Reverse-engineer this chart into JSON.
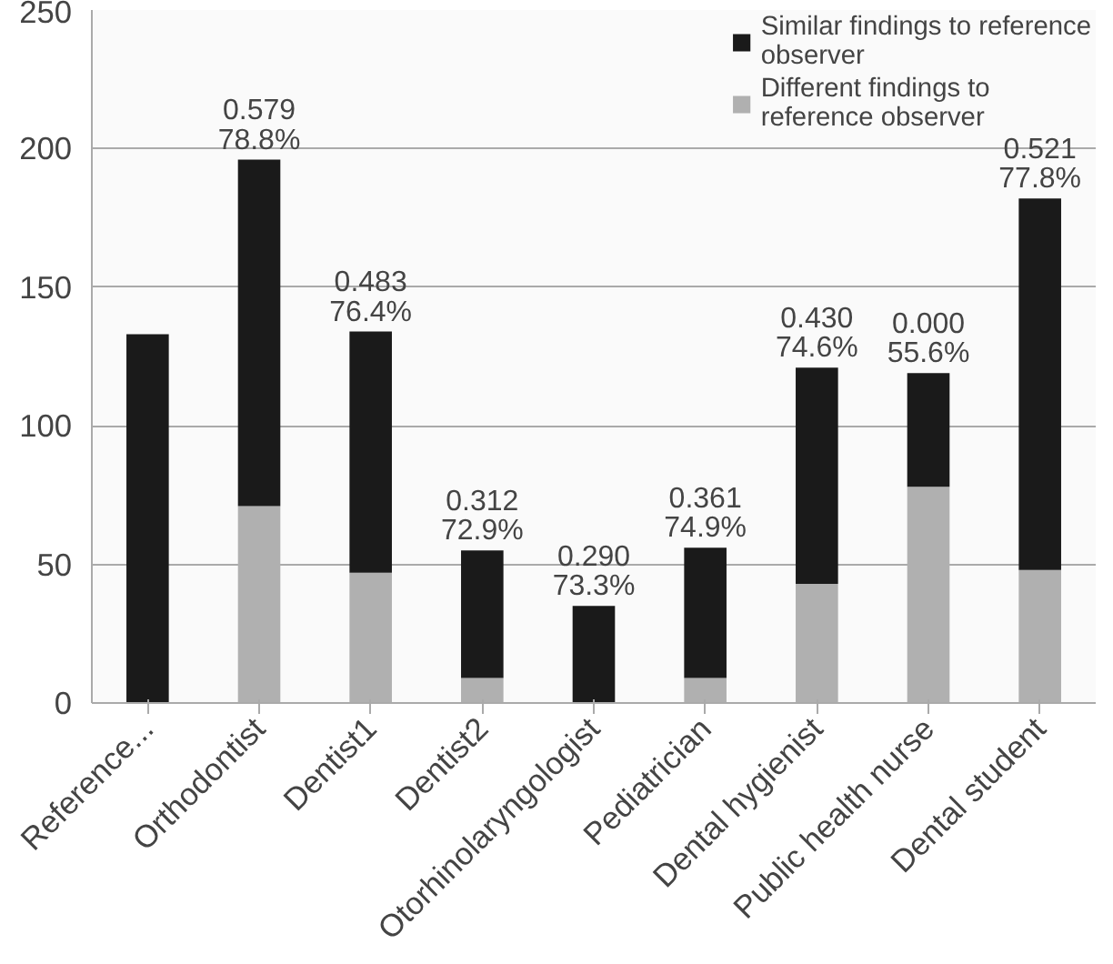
{
  "chart_data": {
    "type": "bar",
    "stacked": true,
    "categories": [
      "Reference...",
      "Orthodontist",
      "Dentist1",
      "Dentist2",
      "Otorhinolaryngologist",
      "Pediatrician",
      "Dental hygienist",
      "Public health nurse",
      "Dental student"
    ],
    "series": [
      {
        "name": "Different findings to reference observer",
        "color": "#b0b0b0",
        "values": [
          0,
          71,
          47,
          9,
          0,
          9,
          43,
          78,
          48
        ]
      },
      {
        "name": "Similar findings to reference observer",
        "color": "#1a1a1a",
        "values": [
          133,
          125,
          87,
          46,
          35,
          47,
          78,
          41,
          134
        ]
      }
    ],
    "ylim": [
      0,
      250
    ],
    "yticks": [
      0,
      50,
      100,
      150,
      200,
      250
    ],
    "grid": "y",
    "legend": "top right",
    "annotations": [
      {
        "text": "0.579\n78.8%",
        "x": "Orthodontist",
        "y": 196
      },
      {
        "text": "0.483\n76.4%",
        "x": "Dentist1",
        "y": 134
      },
      {
        "text": "0.312\n72.9%",
        "x": "Dentist2",
        "y": 55
      },
      {
        "text": "0.290\n73.3%",
        "x": "Otorhinolaryngologist",
        "y": 35
      },
      {
        "text": "0.361\n74.9%",
        "x": "Pediatrician",
        "y": 56
      },
      {
        "text": "0.430\n74.6%",
        "x": "Dental hygienist",
        "y": 121
      },
      {
        "text": "0.000\n55.6%",
        "x": "Public health nurse",
        "y": 119
      },
      {
        "text": "0.521\n77.8%",
        "x": "Dental student",
        "y": 182
      }
    ]
  }
}
